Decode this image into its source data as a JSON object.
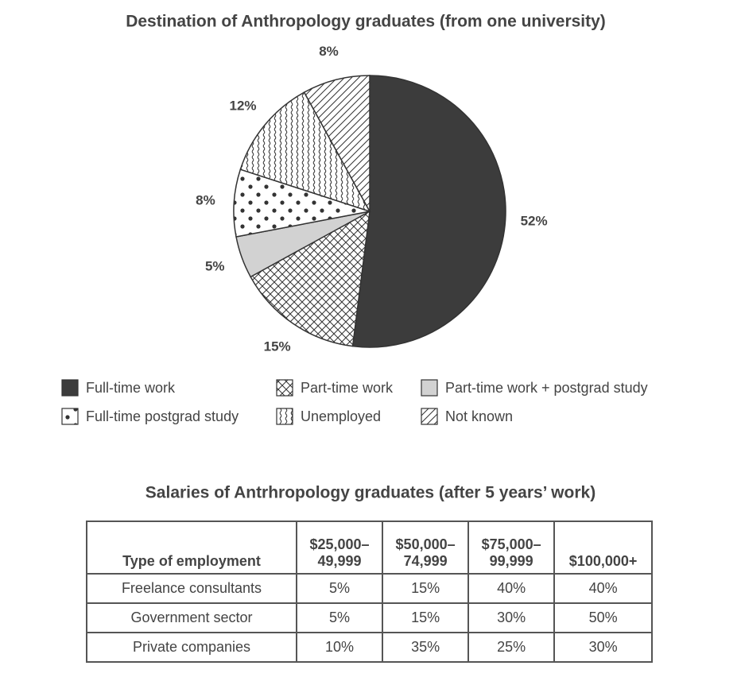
{
  "chart_data": {
    "type": "pie",
    "title": "Destination of Anthropology graduates (from one university)",
    "categories": [
      "Full-time work",
      "Part-time work",
      "Part-time work + postgrad study",
      "Full-time postgrad study",
      "Unemployed",
      "Not known"
    ],
    "values": [
      52,
      15,
      5,
      8,
      12,
      8
    ],
    "value_labels": [
      "52%",
      "15%",
      "5%",
      "8%",
      "12%",
      "8%"
    ],
    "colors": [
      "#3c3c3c",
      "#333333",
      "#d2d2d2",
      "#333333",
      "#333333",
      "#333333"
    ],
    "patterns": [
      "solid",
      "crosshatch",
      "solid",
      "dots",
      "wavy",
      "diagonal"
    ],
    "legend": "bottom"
  },
  "table": {
    "title": "Salaries of Antrhropology graduates (after 5 years’ work)",
    "header": [
      [
        "Type of employment"
      ],
      [
        "$25,000–",
        "49,999"
      ],
      [
        "$50,000–",
        "74,999"
      ],
      [
        "$75,000–",
        "99,999"
      ],
      [
        "$100,000+"
      ]
    ],
    "rows": [
      [
        "Freelance consultants",
        "5%",
        "15%",
        "40%",
        "40%"
      ],
      [
        "Government sector",
        "5%",
        "15%",
        "30%",
        "50%"
      ],
      [
        "Private companies",
        "10%",
        "35%",
        "25%",
        "30%"
      ]
    ]
  }
}
